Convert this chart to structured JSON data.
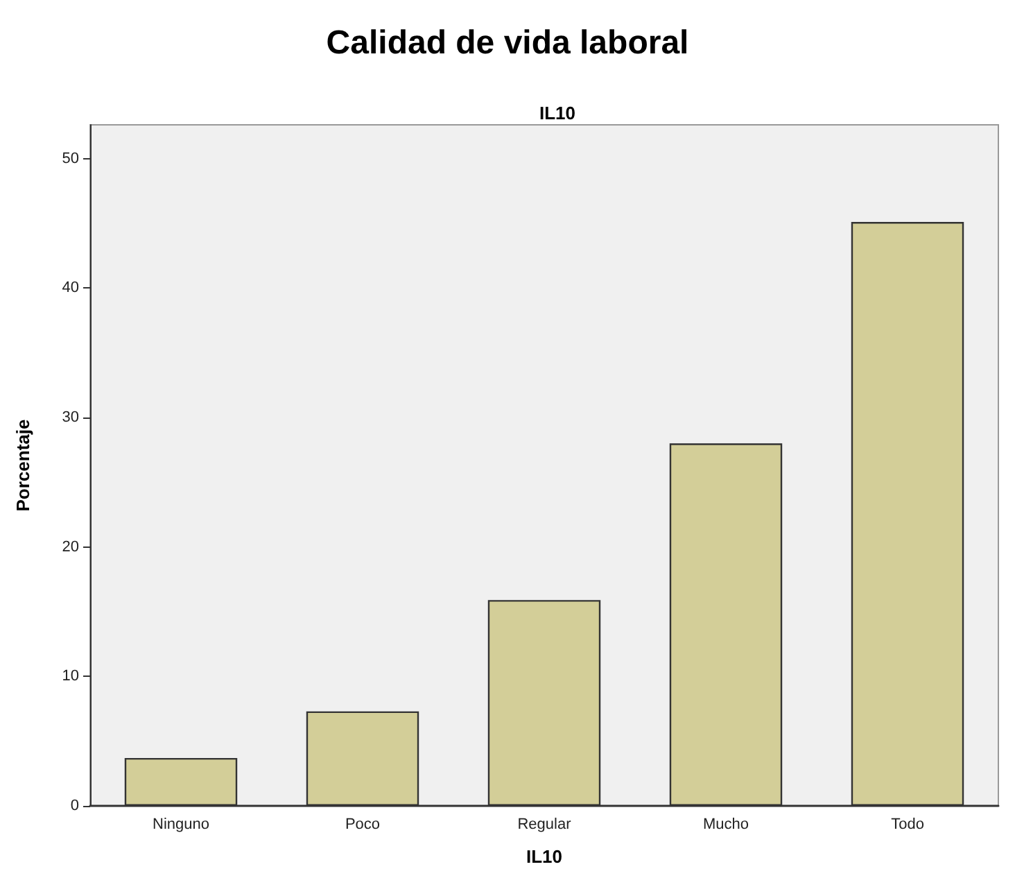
{
  "chart_data": {
    "type": "bar",
    "title": "Calidad de vida laboral",
    "subtitle": "IL10",
    "xlabel": "IL10",
    "ylabel": "Porcentaje",
    "categories": [
      "Ninguno",
      "Poco",
      "Regular",
      "Mucho",
      "Todo"
    ],
    "values": [
      3.7,
      7.3,
      15.9,
      28.0,
      45.1
    ],
    "color": "#d3ce98",
    "ylim": [
      0,
      52.6
    ],
    "yticks": [
      0,
      10,
      20,
      30,
      40,
      50
    ]
  }
}
